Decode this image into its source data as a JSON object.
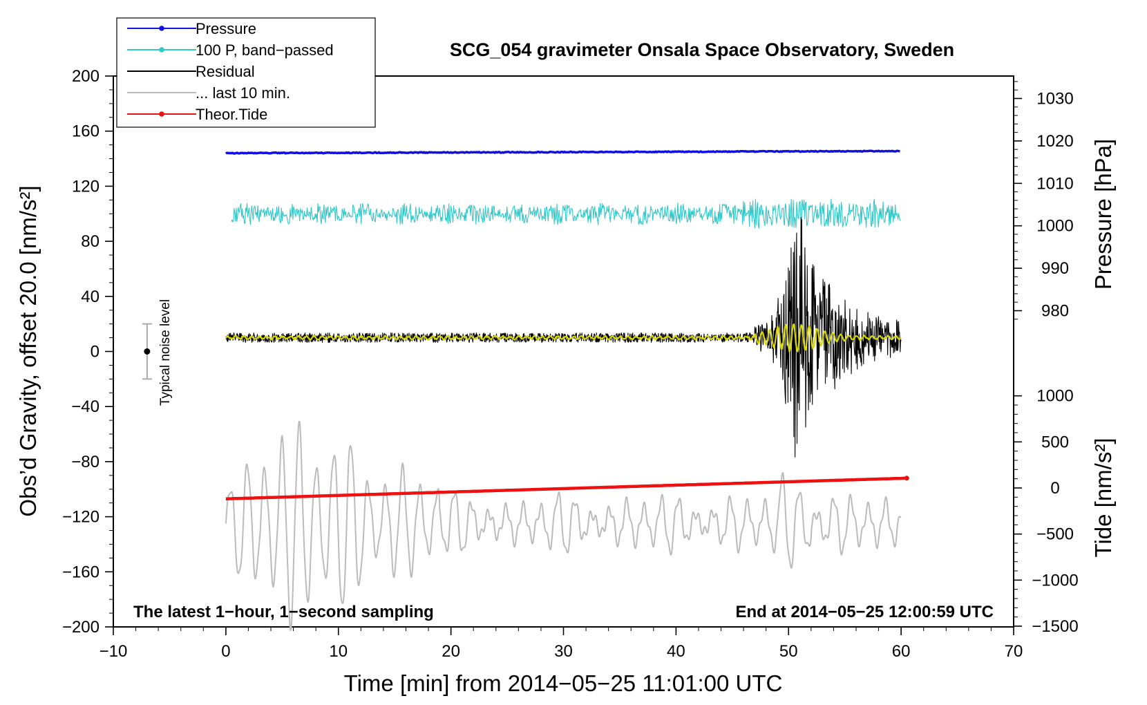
{
  "chart_data": {
    "type": "line",
    "title": "SCG_054 gravimeter Onsala Space Observatory, Sweden",
    "xlabel": "Time [min] from 2014−05−25 11:01:00 UTC",
    "ylabel_left": "Obs’d Gravity, offset 20.0 [nm/s²]",
    "ylabel_right_top": "Pressure [hPa]",
    "ylabel_right_bottom": "Tide [nm/s²]",
    "xlim": [
      -10,
      70
    ],
    "ylim": [
      -200,
      200
    ],
    "x_ticks": [
      "−10",
      "0",
      "10",
      "20",
      "30",
      "40",
      "50",
      "60",
      "70"
    ],
    "y_ticks": [
      "200",
      "160",
      "120",
      "80",
      "40",
      "0",
      "−40",
      "−80",
      "−120",
      "−160",
      "−200"
    ],
    "pressure_ticks": [
      "1030",
      "1020",
      "1010",
      "1000",
      "990",
      "980"
    ],
    "tide_ticks": [
      "1000",
      "500",
      "0",
      "−500",
      "−1000",
      "−1500"
    ],
    "annotations": {
      "left": "The latest 1−hour, 1−second sampling",
      "right": "End at 2014−05−25 12:00:59 UTC",
      "noise": "Typical noise level"
    },
    "legend": [
      {
        "label": "Pressure",
        "color": "#1010e0",
        "marker": true
      },
      {
        "label": "100 P, band−passed",
        "color": "#30c8c8",
        "marker": true
      },
      {
        "label": "Residual",
        "color": "#000000",
        "marker": false
      },
      {
        "label": "... last 10 min.",
        "color": "#bbbbbb",
        "marker": false
      },
      {
        "label": "Theor.Tide",
        "color": "#ee1111",
        "marker": true
      }
    ],
    "series": [
      {
        "name": "Pressure",
        "color": "#1010e0",
        "x_range": [
          0,
          60
        ],
        "y_start": 144,
        "y_end": 145.5
      },
      {
        "name": "100 P, band−passed",
        "color": "#30c8c8",
        "x_range": [
          0.5,
          60
        ],
        "y_center": 100,
        "y_amplitude": 8
      },
      {
        "name": "Residual",
        "color": "#000000",
        "x_range": [
          0,
          60
        ],
        "y_center": 10,
        "noise_amplitude": 3.5,
        "event_start": 47,
        "event_peak": 51,
        "event_amplitude": 90
      },
      {
        "name": "Residual (smoothed)",
        "color": "#d8d800",
        "x_range": [
          0,
          60
        ],
        "y_center": 10
      },
      {
        "name": "... last 10 min.",
        "color": "#bbbbbb",
        "x_range": [
          0,
          60
        ],
        "y_center": -125,
        "y_amplitude_max": 75
      },
      {
        "name": "Theor.Tide",
        "color": "#ee1111",
        "x_range": [
          0,
          60.5
        ],
        "y_start": -107,
        "y_end": -92
      }
    ],
    "noise_bar": {
      "x": -7,
      "y": 0,
      "half_range": 20
    }
  }
}
